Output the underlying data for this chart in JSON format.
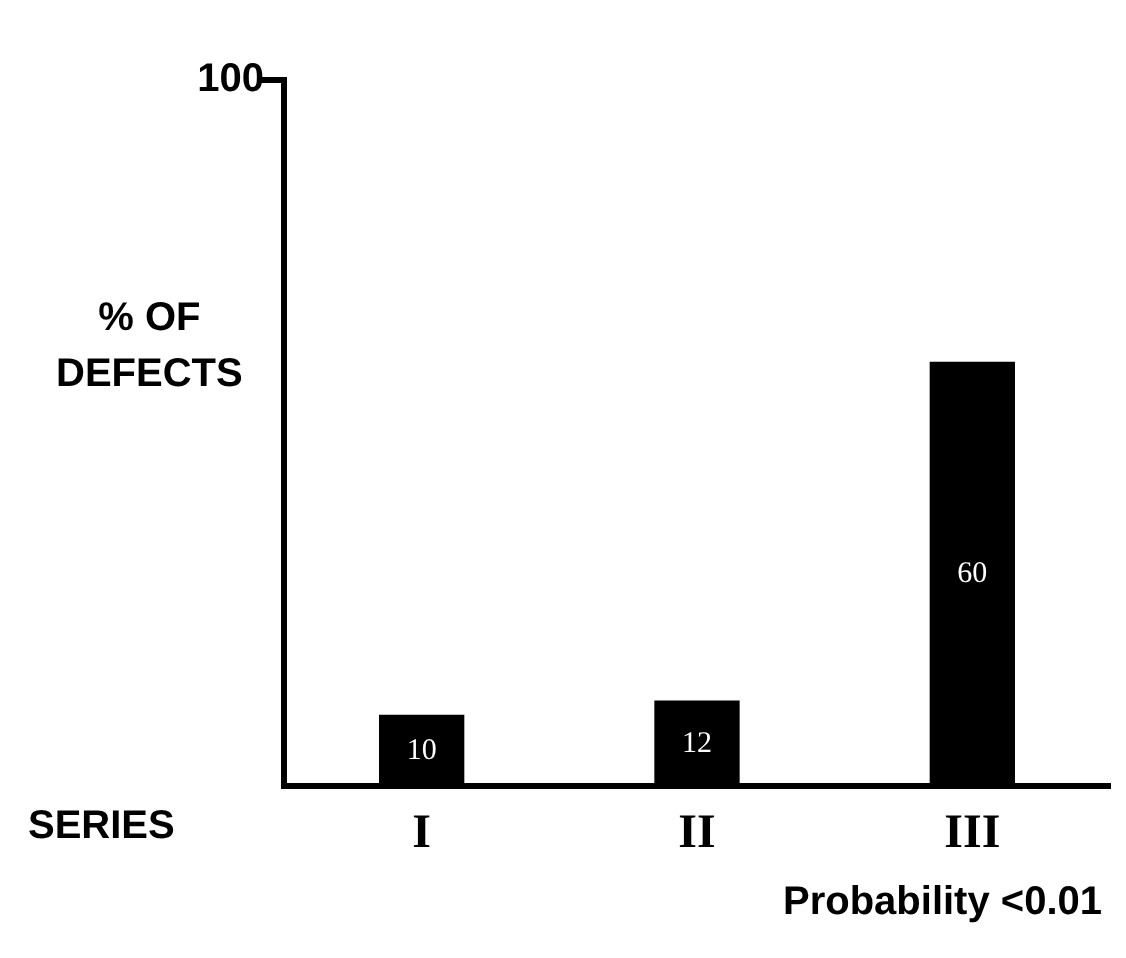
{
  "chart_data": {
    "type": "bar",
    "ylabel": "% OF DEFECTS",
    "xlabel": "SERIES",
    "categories": [
      "I",
      "II",
      "III"
    ],
    "values": [
      10,
      12,
      60
    ],
    "color": "#000000",
    "ylim": [
      0,
      100
    ],
    "yticks": [
      100
    ],
    "grid": false,
    "legend": false,
    "data_labels": true,
    "annotations": [
      "Probability <0.01"
    ]
  }
}
